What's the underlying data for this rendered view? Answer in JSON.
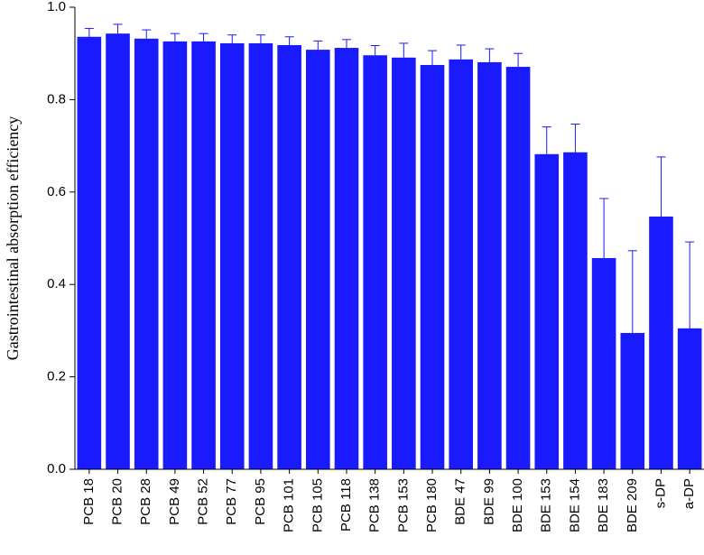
{
  "chart_data": {
    "type": "bar",
    "y_label": "Gastrointestinal absorption efficiency",
    "categories": [
      "PCB 18",
      "PCB 20",
      "PCB 28",
      "PCB 49",
      "PCB 52",
      "PCB 77",
      "PCB 95",
      "PCB 101",
      "PCB 105",
      "PCB 118",
      "PCB 138",
      "PCB 153",
      "PCB 180",
      "BDE 47",
      "BDE 99",
      "BDE 100",
      "BDE 153",
      "BDE 154",
      "BDE 183",
      "BDE 209",
      "s-DP",
      "a-DP"
    ],
    "values": [
      0.936,
      0.943,
      0.932,
      0.926,
      0.926,
      0.922,
      0.922,
      0.918,
      0.908,
      0.912,
      0.896,
      0.891,
      0.875,
      0.887,
      0.881,
      0.871,
      0.682,
      0.686,
      0.457,
      0.295,
      0.547,
      0.305
    ],
    "errors": [
      0.018,
      0.02,
      0.019,
      0.017,
      0.017,
      0.018,
      0.018,
      0.018,
      0.019,
      0.018,
      0.021,
      0.031,
      0.031,
      0.031,
      0.029,
      0.029,
      0.059,
      0.061,
      0.129,
      0.178,
      0.129,
      0.187
    ],
    "color": "#1a1aff",
    "ylim": [
      0,
      1
    ],
    "yticks": [
      {
        "value": 0,
        "label": "0.0"
      },
      0.2,
      0.4,
      0.6,
      0.8,
      {
        "value": 1,
        "label": "1.0"
      }
    ]
  }
}
